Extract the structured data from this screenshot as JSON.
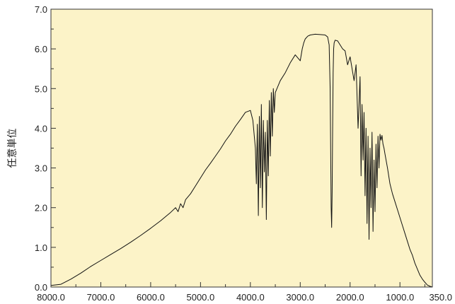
{
  "chart_data": {
    "type": "line",
    "title": "",
    "xlabel": "",
    "ylabel": "任意単位",
    "xlim": [
      8000,
      350
    ],
    "ylim": [
      0,
      7
    ],
    "x_reversed": true,
    "grid": false,
    "legend": "none",
    "y_ticks": [
      {
        "value": 0,
        "label": "0.0"
      },
      {
        "value": 1,
        "label": "1.0"
      },
      {
        "value": 2,
        "label": "2.0"
      },
      {
        "value": 3,
        "label": "3.0"
      },
      {
        "value": 4,
        "label": "4.0"
      },
      {
        "value": 5,
        "label": "5.0"
      },
      {
        "value": 6,
        "label": "6.0"
      },
      {
        "value": 7,
        "label": "7.0"
      }
    ],
    "x_ticks": [
      {
        "value": 8000,
        "label": "8000.0"
      },
      {
        "value": 7000,
        "label": "7000.0"
      },
      {
        "value": 6000,
        "label": "6000.0"
      },
      {
        "value": 5000,
        "label": "5000.0"
      },
      {
        "value": 4000,
        "label": "4000.0"
      },
      {
        "value": 3000,
        "label": "3000.0"
      },
      {
        "value": 2000,
        "label": "2000.0"
      },
      {
        "value": 1000,
        "label": "1000.0"
      },
      {
        "value": 350,
        "label": "350.0"
      }
    ],
    "series": [
      {
        "color": "#111111",
        "x": [
          8000,
          7800,
          7600,
          7400,
          7200,
          7000,
          6800,
          6600,
          6400,
          6200,
          6000,
          5800,
          5600,
          5500,
          5450,
          5400,
          5350,
          5300,
          5200,
          5100,
          5000,
          4900,
          4800,
          4700,
          4600,
          4500,
          4400,
          4300,
          4200,
          4100,
          4000,
          3950,
          3900,
          3880,
          3860,
          3840,
          3820,
          3800,
          3780,
          3760,
          3740,
          3720,
          3700,
          3680,
          3660,
          3640,
          3620,
          3600,
          3580,
          3560,
          3540,
          3520,
          3500,
          3450,
          3400,
          3300,
          3200,
          3100,
          3000,
          2960,
          2930,
          2900,
          2850,
          2800,
          2700,
          2600,
          2500,
          2450,
          2420,
          2400,
          2390,
          2380,
          2370,
          2360,
          2350,
          2340,
          2330,
          2320,
          2300,
          2250,
          2200,
          2150,
          2100,
          2050,
          2000,
          1960,
          1920,
          1880,
          1840,
          1800,
          1780,
          1760,
          1740,
          1720,
          1700,
          1680,
          1660,
          1640,
          1620,
          1600,
          1580,
          1560,
          1540,
          1520,
          1500,
          1480,
          1460,
          1440,
          1420,
          1400,
          1380,
          1360,
          1340,
          1320,
          1300,
          1250,
          1200,
          1150,
          1100,
          1050,
          1000,
          950,
          900,
          850,
          800,
          750,
          700,
          650,
          600,
          550,
          500,
          450,
          400,
          350
        ],
        "y": [
          0.04,
          0.07,
          0.2,
          0.35,
          0.52,
          0.67,
          0.82,
          0.97,
          1.13,
          1.3,
          1.48,
          1.67,
          1.88,
          2.0,
          1.9,
          2.1,
          2.0,
          2.2,
          2.35,
          2.55,
          2.75,
          2.95,
          3.12,
          3.3,
          3.48,
          3.68,
          3.85,
          4.05,
          4.22,
          4.4,
          4.45,
          4.2,
          3.5,
          2.6,
          4.1,
          1.8,
          4.3,
          2.5,
          4.6,
          2.0,
          4.2,
          2.9,
          3.9,
          1.7,
          4.2,
          2.8,
          4.7,
          3.3,
          4.9,
          3.8,
          5.0,
          4.4,
          4.9,
          5.05,
          5.2,
          5.4,
          5.65,
          5.85,
          5.7,
          6.0,
          6.15,
          6.25,
          6.32,
          6.35,
          6.37,
          6.36,
          6.35,
          6.3,
          6.1,
          5.0,
          3.5,
          2.0,
          1.5,
          2.4,
          4.0,
          5.4,
          6.0,
          6.15,
          6.22,
          6.2,
          6.1,
          6.0,
          5.95,
          5.6,
          5.8,
          5.5,
          5.2,
          5.6,
          4.0,
          5.3,
          2.8,
          4.6,
          3.2,
          4.4,
          2.3,
          4.0,
          1.6,
          3.8,
          1.2,
          3.5,
          2.0,
          3.9,
          1.4,
          3.2,
          1.9,
          3.6,
          2.5,
          3.8,
          3.0,
          3.85,
          3.7,
          3.82,
          3.6,
          3.5,
          3.35,
          3.0,
          2.6,
          2.35,
          2.15,
          1.95,
          1.75,
          1.55,
          1.35,
          1.15,
          0.95,
          0.8,
          0.6,
          0.45,
          0.3,
          0.2,
          0.12,
          0.05,
          0.02,
          0.0
        ]
      }
    ]
  },
  "style": {
    "plot_background": "#fcf3c8",
    "axis_color": "#333333",
    "line_color": "#111111"
  }
}
